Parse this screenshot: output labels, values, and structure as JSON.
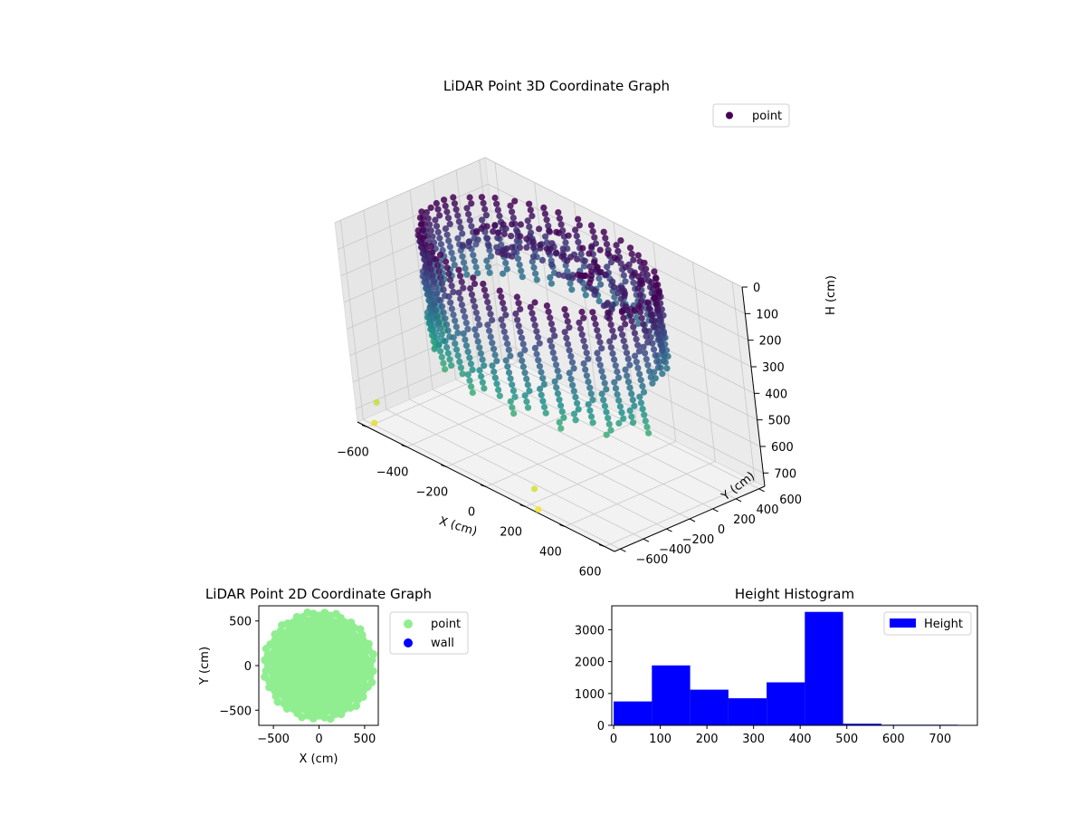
{
  "colors": {
    "viridis_low": "#440154",
    "viridis_mid": "#21918c",
    "viridis_high": "#fde725",
    "point_2d": "#90ee90",
    "wall": "#0000ff",
    "histogram": "#0000ff"
  },
  "chart_data": [
    {
      "type": "scatter",
      "projection": "3d",
      "title": "LiDAR Point 3D Coordinate Graph",
      "xlabel": "X (cm)",
      "ylabel": "Y (cm)",
      "zlabel": "H (cm)",
      "x_ticks": [
        "−600",
        "−400",
        "−200",
        "0",
        "200",
        "400",
        "600"
      ],
      "y_ticks": [
        "−600",
        "−400",
        "−200",
        "0",
        "200",
        "400",
        "600"
      ],
      "z_ticks": [
        "0",
        "100",
        "200",
        "300",
        "400",
        "500",
        "600",
        "700"
      ],
      "xlim": [
        -650,
        650
      ],
      "ylim": [
        -650,
        650
      ],
      "zlim": [
        0,
        750
      ],
      "z_inverted": true,
      "colormap": "viridis",
      "grid": true,
      "legend": {
        "position": "top-right",
        "entries": [
          "point"
        ]
      },
      "series": [
        {
          "name": "point",
          "shape": "ring of vertical column strips",
          "ring_radius": 520,
          "column_height_range": [
            0,
            500
          ],
          "stray_points": [
            {
              "x": -560,
              "y": -650,
              "h": 720
            },
            {
              "x": 260,
              "y": -640,
              "h": 740
            },
            {
              "x": -620,
              "y": -520,
              "h": 690
            },
            {
              "x": 200,
              "y": -560,
              "h": 700
            }
          ]
        }
      ]
    },
    {
      "type": "scatter",
      "title": "LiDAR Point 2D Coordinate Graph",
      "xlabel": "X (cm)",
      "ylabel": "Y (cm)",
      "x_ticks": [
        "−500",
        "0",
        "500"
      ],
      "y_ticks": [
        "−500",
        "0",
        "500"
      ],
      "xlim": [
        -660,
        650
      ],
      "ylim": [
        -670,
        670
      ],
      "legend": {
        "position": "outside right",
        "entries": [
          "point",
          "wall"
        ]
      },
      "series": [
        {
          "name": "point",
          "shape": "filled disk",
          "radius": 560,
          "color": "#90ee90"
        },
        {
          "name": "wall",
          "color": "#0000ff",
          "values": []
        }
      ]
    },
    {
      "type": "bar",
      "title": "Height Histogram",
      "x_ticks": [
        "0",
        "100",
        "200",
        "300",
        "400",
        "500",
        "600",
        "700"
      ],
      "y_ticks": [
        "0",
        "1000",
        "2000",
        "3000"
      ],
      "xlim": [
        -4,
        780
      ],
      "ylim": [
        0,
        3750
      ],
      "legend": {
        "position": "top-right",
        "entries": [
          "Height"
        ]
      },
      "bin_edges": [
        0,
        82,
        164,
        246,
        328,
        410,
        492,
        574,
        656,
        738
      ],
      "series": [
        {
          "name": "Height",
          "values": [
            750,
            1880,
            1120,
            850,
            1350,
            3560,
            50,
            20,
            20
          ],
          "color": "#0000ff"
        }
      ]
    }
  ]
}
